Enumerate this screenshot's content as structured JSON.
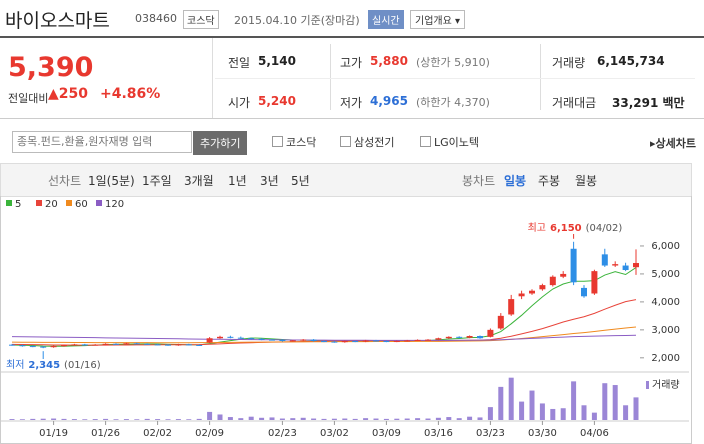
{
  "header": {
    "name": "바이오스마트",
    "code": "038460",
    "market": "코스닥",
    "date": "2015.04.10 기준(장마감)",
    "realtime": "실시간",
    "overview": "기업개요"
  },
  "price": {
    "current": "5,390",
    "change_label": "전일대비",
    "change": "▲250",
    "change_pct": "+4.86%"
  },
  "quote": {
    "rows": [
      [
        {
          "label": "전일",
          "value": "5,140"
        },
        {
          "label": "고가",
          "value": "5,880",
          "note": "(상한가 5,910)"
        },
        {
          "label": "거래량",
          "value": "6,145,734"
        }
      ],
      [
        {
          "label": "시가",
          "value": "5,240"
        },
        {
          "label": "저가",
          "value": "4,965",
          "note": "(하한가 4,370)"
        },
        {
          "label": "거래대금",
          "value": "33,291 백만"
        }
      ]
    ]
  },
  "search": {
    "placeholder": "종목.펀드,환율,원자재명 입력",
    "button": "추가하기",
    "compare": [
      "코스닥",
      "삼성전기",
      "LG이노텍"
    ],
    "detail": "상세차트"
  },
  "tabs": {
    "line": "선차트",
    "periods": [
      "1일(5분)",
      "1주일",
      "3개월",
      "1년",
      "3년",
      "5년"
    ],
    "candle": "봉차트",
    "candle_periods": [
      "일봉",
      "주봉",
      "월봉"
    ]
  },
  "chart_data": {
    "type": "candlestick",
    "categories": [
      null,
      null,
      null,
      null,
      "01/19",
      null,
      null,
      null,
      null,
      "01/26",
      null,
      null,
      null,
      null,
      "02/02",
      null,
      null,
      null,
      null,
      "02/09",
      null,
      null,
      null,
      null,
      null,
      null,
      "02/23",
      null,
      null,
      null,
      null,
      "03/02",
      null,
      null,
      null,
      null,
      "03/09",
      null,
      null,
      null,
      null,
      "03/16",
      null,
      null,
      null,
      null,
      "03/23",
      null,
      null,
      null,
      null,
      "03/30",
      null,
      null,
      null,
      null,
      "04/06",
      null,
      null,
      null,
      null
    ],
    "open": [
      2470,
      2450,
      2420,
      2400,
      2380,
      2420,
      2450,
      2480,
      2460,
      2470,
      2500,
      2490,
      2520,
      2500,
      2480,
      2470,
      2450,
      2480,
      2460,
      2550,
      2700,
      2750,
      2720,
      2700,
      2680,
      2650,
      2640,
      2600,
      2620,
      2650,
      2600,
      2580,
      2560,
      2600,
      2580,
      2620,
      2600,
      2580,
      2600,
      2620,
      2640,
      2650,
      2700,
      2750,
      2720,
      2780,
      2750,
      3050,
      3550,
      4200,
      4300,
      4450,
      4600,
      4900,
      5900,
      4500,
      4300,
      5700,
      5300,
      5300,
      5240
    ],
    "high": [
      2490,
      2470,
      2440,
      2420,
      2440,
      2470,
      2500,
      2500,
      2490,
      2520,
      2520,
      2540,
      2540,
      2520,
      2500,
      2490,
      2500,
      2500,
      2480,
      2740,
      2790,
      2790,
      2760,
      2720,
      2700,
      2670,
      2660,
      2640,
      2670,
      2670,
      2620,
      2600,
      2620,
      2620,
      2640,
      2640,
      2620,
      2620,
      2640,
      2660,
      2670,
      2720,
      2770,
      2770,
      2800,
      2800,
      3050,
      3600,
      4250,
      4400,
      4450,
      4650,
      4950,
      5100,
      6150,
      4600,
      5150,
      5900,
      5450,
      5400,
      5880
    ],
    "low": [
      2430,
      2400,
      2380,
      2345,
      2360,
      2400,
      2430,
      2440,
      2440,
      2450,
      2470,
      2470,
      2490,
      2460,
      2450,
      2430,
      2430,
      2440,
      2430,
      2530,
      2680,
      2700,
      2680,
      2660,
      2630,
      2620,
      2580,
      2580,
      2600,
      2580,
      2560,
      2540,
      2540,
      2560,
      2560,
      2580,
      2560,
      2560,
      2580,
      2600,
      2620,
      2630,
      2680,
      2700,
      2700,
      2680,
      2730,
      3000,
      3500,
      4100,
      4250,
      4400,
      4550,
      4850,
      4600,
      4150,
      4250,
      5250,
      5250,
      5100,
      4965
    ],
    "close": [
      2450,
      2420,
      2400,
      2380,
      2420,
      2450,
      2480,
      2460,
      2470,
      2500,
      2490,
      2520,
      2500,
      2480,
      2470,
      2450,
      2480,
      2460,
      2450,
      2700,
      2750,
      2720,
      2700,
      2680,
      2650,
      2640,
      2600,
      2620,
      2650,
      2600,
      2580,
      2560,
      2600,
      2580,
      2620,
      2600,
      2580,
      2600,
      2620,
      2640,
      2650,
      2700,
      2750,
      2720,
      2780,
      2700,
      3000,
      3500,
      4100,
      4300,
      4400,
      4600,
      4900,
      5000,
      4700,
      4200,
      5100,
      5300,
      5350,
      5140,
      5390
    ],
    "up_color": "#e8382f",
    "down_color": "#2d8ee6",
    "ylim": [
      1600,
      7000
    ],
    "yticks": [
      {
        "value": 2000,
        "label": "2,000"
      },
      {
        "value": 3000,
        "label": "3,000"
      },
      {
        "value": 4000,
        "label": "4,000"
      },
      {
        "value": 5000,
        "label": "5,000"
      },
      {
        "value": 6000,
        "label": "6,000"
      }
    ],
    "series": [
      {
        "name": "5",
        "color": "#3bb43b",
        "values": [
          2460,
          2450,
          2440,
          2420,
          2414,
          2414,
          2426,
          2438,
          2456,
          2472,
          2480,
          2488,
          2496,
          2498,
          2492,
          2482,
          2476,
          2468,
          2462,
          2508,
          2562,
          2616,
          2664,
          2710,
          2700,
          2678,
          2654,
          2638,
          2632,
          2622,
          2610,
          2602,
          2598,
          2584,
          2588,
          2592,
          2596,
          2596,
          2604,
          2608,
          2618,
          2642,
          2672,
          2692,
          2720,
          2730,
          2790,
          2940,
          3216,
          3520,
          3860,
          4180,
          4460,
          4640,
          4740,
          4740,
          4760,
          4960,
          5080,
          4980,
          5230
        ]
      },
      {
        "name": "20",
        "color": "#e8443a",
        "values": [
          2480,
          2475,
          2470,
          2465,
          2460,
          2458,
          2456,
          2455,
          2455,
          2456,
          2458,
          2460,
          2462,
          2464,
          2466,
          2467,
          2468,
          2469,
          2470,
          2485,
          2500,
          2515,
          2528,
          2540,
          2550,
          2560,
          2566,
          2574,
          2582,
          2590,
          2596,
          2600,
          2606,
          2612,
          2618,
          2614,
          2608,
          2604,
          2602,
          2600,
          2602,
          2608,
          2614,
          2620,
          2628,
          2632,
          2652,
          2698,
          2772,
          2856,
          2944,
          3044,
          3160,
          3280,
          3380,
          3470,
          3590,
          3740,
          3880,
          4010,
          4080
        ]
      },
      {
        "name": "60",
        "color": "#f08a1e",
        "values": [
          2560,
          2558,
          2556,
          2554,
          2552,
          2550,
          2548,
          2546,
          2545,
          2544,
          2543,
          2542,
          2542,
          2541,
          2540,
          2540,
          2540,
          2540,
          2541,
          2544,
          2548,
          2552,
          2556,
          2560,
          2563,
          2566,
          2568,
          2570,
          2572,
          2574,
          2576,
          2577,
          2578,
          2580,
          2581,
          2582,
          2583,
          2584,
          2585,
          2586,
          2587,
          2590,
          2594,
          2598,
          2602,
          2606,
          2616,
          2634,
          2660,
          2690,
          2722,
          2756,
          2792,
          2830,
          2868,
          2900,
          2940,
          2984,
          3026,
          3066,
          3100
        ]
      },
      {
        "name": "120",
        "color": "#8b5dc4",
        "values": [
          2760,
          2755,
          2750,
          2745,
          2740,
          2735,
          2730,
          2725,
          2720,
          2715,
          2710,
          2705,
          2700,
          2695,
          2690,
          2685,
          2680,
          2675,
          2670,
          2666,
          2662,
          2658,
          2654,
          2650,
          2647,
          2644,
          2641,
          2638,
          2636,
          2634,
          2632,
          2630,
          2628,
          2627,
          2626,
          2625,
          2624,
          2623,
          2622,
          2622,
          2622,
          2623,
          2625,
          2627,
          2629,
          2631,
          2638,
          2648,
          2662,
          2678,
          2694,
          2710,
          2726,
          2742,
          2756,
          2766,
          2776,
          2786,
          2794,
          2800,
          2806
        ]
      }
    ],
    "volume_label": "거래량",
    "volume_color": "#9b86d6",
    "volume": [
      250000,
      200000,
      300000,
      350000,
      400000,
      300000,
      250000,
      200000,
      250000,
      300000,
      200000,
      250000,
      200000,
      300000,
      250000,
      200000,
      250000,
      200000,
      300000,
      2200000,
      1500000,
      800000,
      500000,
      900000,
      600000,
      700000,
      400000,
      500000,
      600000,
      400000,
      300000,
      350000,
      400000,
      300000,
      500000,
      400000,
      300000,
      350000,
      400000,
      500000,
      400000,
      600000,
      800000,
      500000,
      900000,
      700000,
      3500000,
      9000000,
      11500000,
      5000000,
      8000000,
      4500000,
      3000000,
      3200000,
      10500000,
      4000000,
      2000000,
      10000000,
      9500000,
      4000000,
      6145734
    ],
    "volume_ylim": [
      0,
      12500000
    ],
    "max_note": {
      "label": "최고",
      "value": "6,150",
      "date": "(04/02)",
      "index": 54
    },
    "min_note": {
      "label": "최저",
      "value": "2,345",
      "date": "(01/16)",
      "index": 3
    }
  }
}
